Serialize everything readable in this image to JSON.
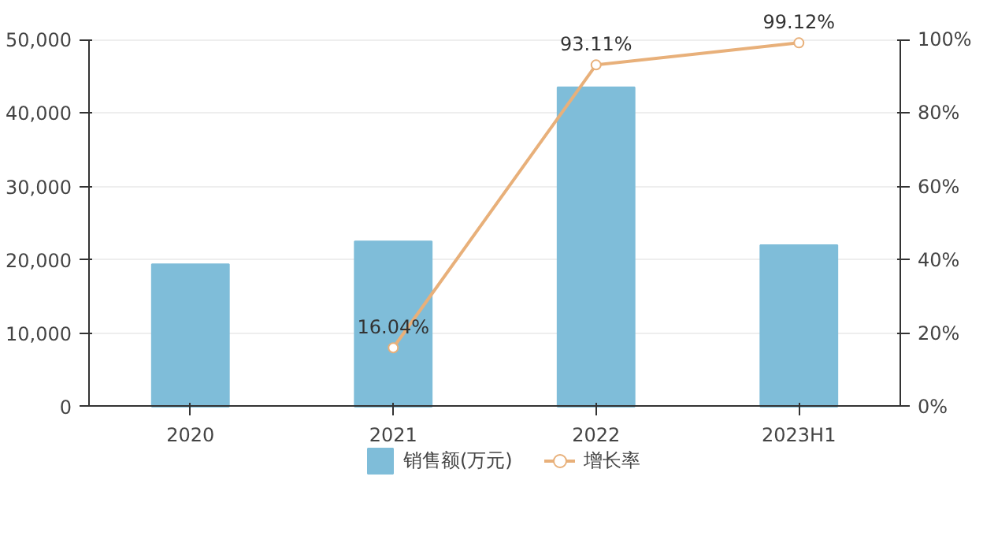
{
  "chart_data": {
    "type": "bar",
    "categories": [
      "2020",
      "2021",
      "2022",
      "2023H1"
    ],
    "series": [
      {
        "name": "销售额(万元)",
        "color": "#7fbdd9",
        "values": [
          19400,
          22500,
          43500,
          22000
        ]
      },
      {
        "name": "增长率",
        "type": "line",
        "axis": "y2",
        "color": "#e8b07a",
        "marker": "circle",
        "values": [
          null,
          16.04,
          93.11,
          99.12
        ],
        "value_labels": [
          null,
          "16.04%",
          "93.11%",
          "99.12%"
        ]
      }
    ],
    "ylim": [
      0,
      50000
    ],
    "yticks": [
      {
        "value": 0,
        "label": "0"
      },
      {
        "value": 10000,
        "label": "10,000"
      },
      {
        "value": 20000,
        "label": "20,000"
      },
      {
        "value": 30000,
        "label": "30,000"
      },
      {
        "value": 40000,
        "label": "40,000"
      },
      {
        "value": 50000,
        "label": "50,000"
      }
    ],
    "y2lim": [
      0,
      100
    ],
    "y2ticks": [
      {
        "value": 0,
        "label": "0%"
      },
      {
        "value": 20,
        "label": "20%"
      },
      {
        "value": 40,
        "label": "40%"
      },
      {
        "value": 60,
        "label": "60%"
      },
      {
        "value": 80,
        "label": "80%"
      },
      {
        "value": 100,
        "label": "100%"
      }
    ],
    "grid": "y",
    "legend": "bottom"
  }
}
